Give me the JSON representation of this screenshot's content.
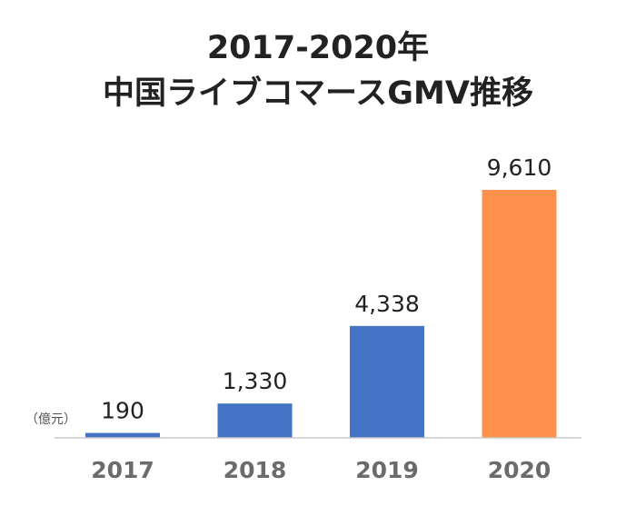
{
  "chart_data": {
    "type": "bar",
    "title_lines": [
      "2017-2020年",
      "中国ライブコマースGMV推移"
    ],
    "unit": "（億元）",
    "categories": [
      "2017",
      "2018",
      "2019",
      "2020"
    ],
    "values": [
      190,
      1330,
      4338,
      9610
    ],
    "value_labels": [
      "190",
      "1,330",
      "4,338",
      "9,610"
    ],
    "bar_colors": [
      "#4472c4",
      "#4472c4",
      "#4472c4",
      "#ff914d"
    ],
    "ylim": [
      0,
      9610
    ],
    "grid": false,
    "legend": "none"
  }
}
